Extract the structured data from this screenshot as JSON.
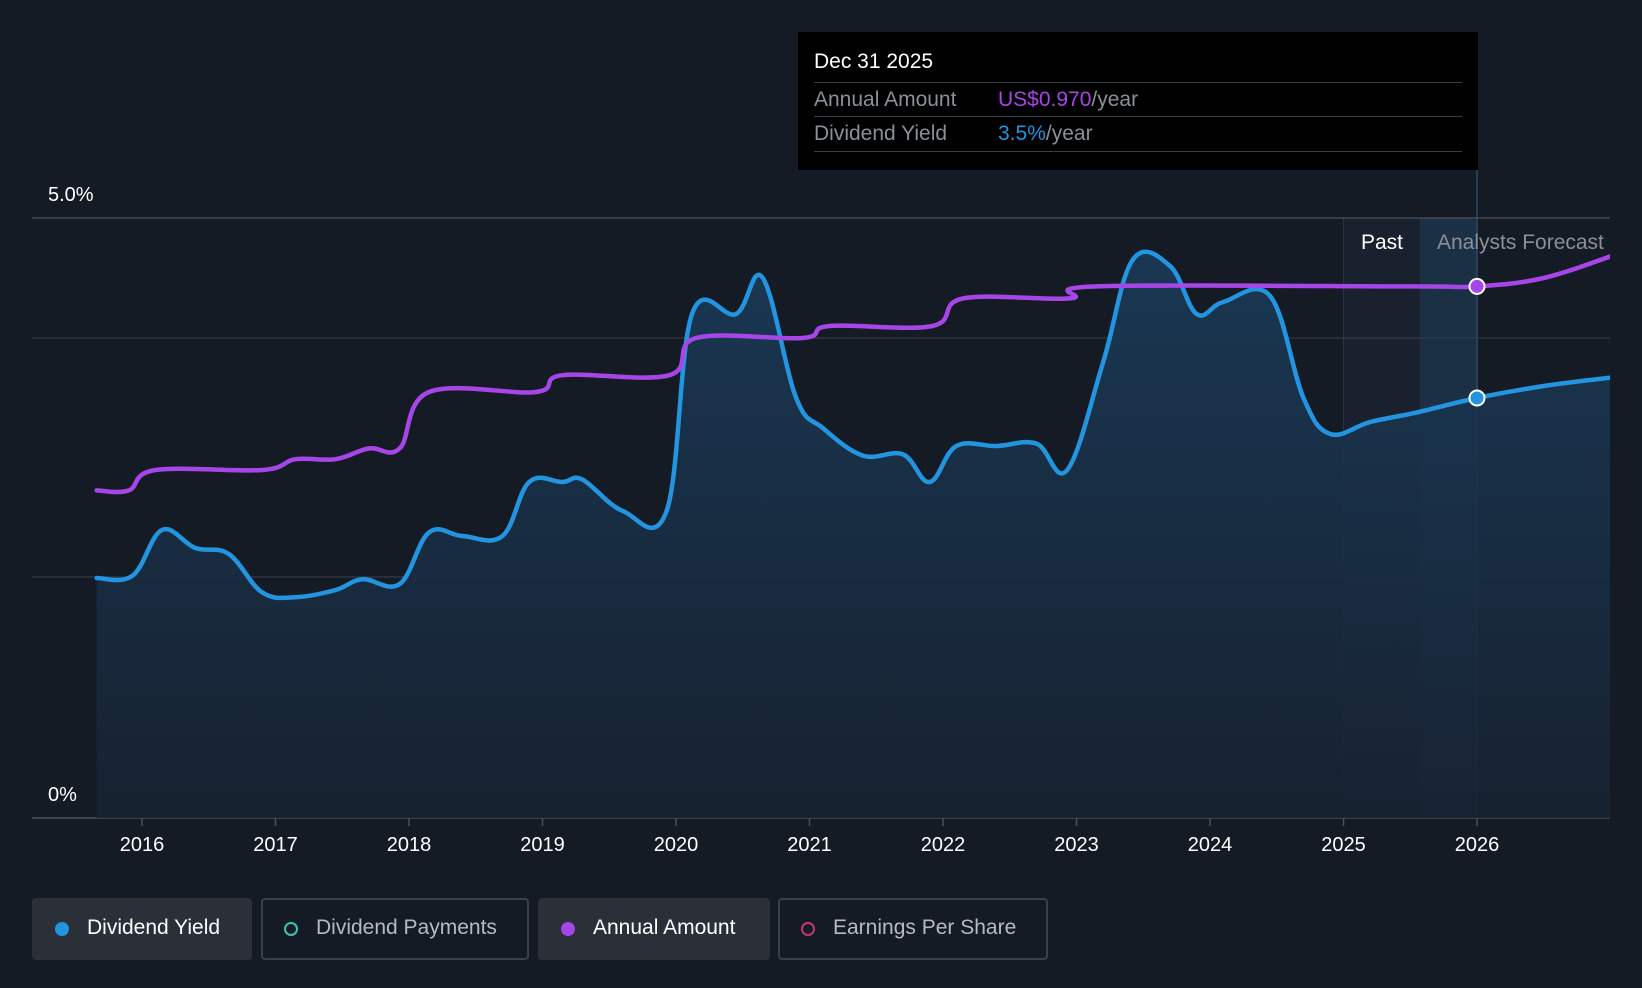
{
  "chart_data": {
    "type": "line",
    "y_axis": {
      "ticks": [
        "5.0%",
        "0%"
      ],
      "ylim": [
        0,
        5.0
      ]
    },
    "x_axis": {
      "ticks": [
        "2016",
        "2017",
        "2018",
        "2019",
        "2020",
        "2021",
        "2022",
        "2023",
        "2024",
        "2025",
        "2026"
      ]
    },
    "regions": {
      "past_label": "Past",
      "forecast_label": "Analysts Forecast"
    },
    "series": [
      {
        "name": "Dividend Yield",
        "color": "#2394df",
        "area": true,
        "points": [
          [
            2015.66,
            2.0
          ],
          [
            2015.93,
            2.02
          ],
          [
            2016.15,
            2.4
          ],
          [
            2016.4,
            2.25
          ],
          [
            2016.65,
            2.2
          ],
          [
            2016.9,
            1.88
          ],
          [
            2017.15,
            1.84
          ],
          [
            2017.45,
            1.9
          ],
          [
            2017.65,
            1.99
          ],
          [
            2017.93,
            1.95
          ],
          [
            2018.15,
            2.38
          ],
          [
            2018.4,
            2.35
          ],
          [
            2018.7,
            2.35
          ],
          [
            2018.9,
            2.8
          ],
          [
            2019.15,
            2.8
          ],
          [
            2019.3,
            2.82
          ],
          [
            2019.6,
            2.56
          ],
          [
            2019.93,
            2.56
          ],
          [
            2020.12,
            4.2
          ],
          [
            2020.45,
            4.2
          ],
          [
            2020.65,
            4.5
          ],
          [
            2020.9,
            3.5
          ],
          [
            2021.1,
            3.25
          ],
          [
            2021.4,
            3.02
          ],
          [
            2021.7,
            3.03
          ],
          [
            2021.9,
            2.8
          ],
          [
            2022.1,
            3.1
          ],
          [
            2022.4,
            3.1
          ],
          [
            2022.7,
            3.12
          ],
          [
            2022.93,
            2.9
          ],
          [
            2023.2,
            3.8
          ],
          [
            2023.42,
            4.65
          ],
          [
            2023.7,
            4.6
          ],
          [
            2023.9,
            4.2
          ],
          [
            2024.1,
            4.3
          ],
          [
            2024.45,
            4.35
          ],
          [
            2024.7,
            3.5
          ],
          [
            2024.9,
            3.2
          ],
          [
            2025.2,
            3.3
          ],
          [
            2025.55,
            3.38
          ],
          [
            2026.0,
            3.5
          ],
          [
            2026.5,
            3.6
          ],
          [
            2027.0,
            3.67
          ]
        ],
        "highlight": {
          "date": "Dec 31 2025",
          "x": 2026.0,
          "value": "3.5%",
          "unit": "/year"
        }
      },
      {
        "name": "Annual Amount",
        "color": "#a646e8",
        "area": false,
        "points": [
          [
            2015.66,
            2.73
          ],
          [
            2015.9,
            2.73
          ],
          [
            2016.1,
            2.9
          ],
          [
            2016.9,
            2.9
          ],
          [
            2017.15,
            2.99
          ],
          [
            2017.45,
            2.99
          ],
          [
            2017.7,
            3.08
          ],
          [
            2017.93,
            3.08
          ],
          [
            2018.15,
            3.55
          ],
          [
            2018.95,
            3.55
          ],
          [
            2019.15,
            3.69
          ],
          [
            2019.95,
            3.69
          ],
          [
            2020.15,
            4.0
          ],
          [
            2020.95,
            4.0
          ],
          [
            2021.15,
            4.1
          ],
          [
            2021.92,
            4.1
          ],
          [
            2022.15,
            4.33
          ],
          [
            2022.95,
            4.33
          ],
          [
            2023.15,
            4.43
          ],
          [
            2025.5,
            4.43
          ],
          [
            2026.0,
            4.43
          ],
          [
            2026.5,
            4.5
          ],
          [
            2027.0,
            4.68
          ]
        ],
        "highlight": {
          "date": "Dec 31 2025",
          "x": 2026.0,
          "value": "US$0.970",
          "unit": "/year"
        }
      }
    ]
  },
  "tooltip": {
    "date": "Dec 31 2025",
    "rows": [
      {
        "label": "Annual Amount",
        "value": "US$0.970",
        "unit": "/year",
        "color": "#a646e8"
      },
      {
        "label": "Dividend Yield",
        "value": "3.5%",
        "unit": "/year",
        "color": "#2394df"
      }
    ]
  },
  "legend": [
    {
      "label": "Dividend Yield",
      "color": "#2394df",
      "active": true
    },
    {
      "label": "Dividend Payments",
      "color": "#3bc4b4",
      "active": false
    },
    {
      "label": "Annual Amount",
      "color": "#a646e8",
      "active": true
    },
    {
      "label": "Earnings Per Share",
      "color": "#c2396c",
      "active": false
    }
  ]
}
